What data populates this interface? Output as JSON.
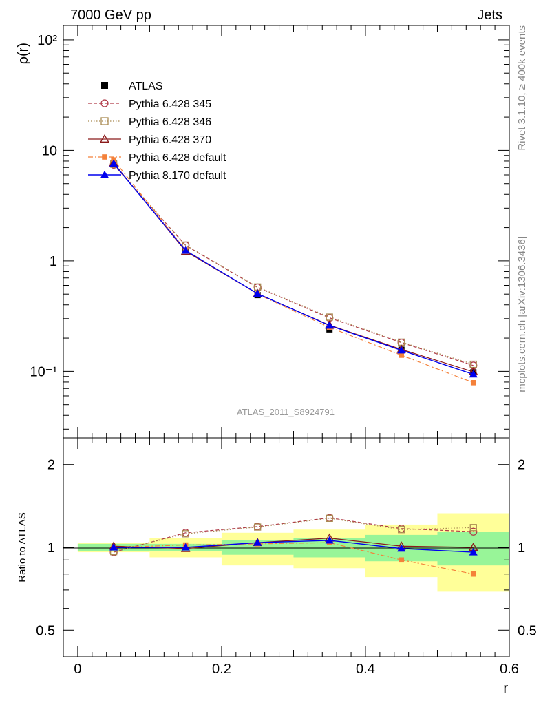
{
  "header": {
    "left": "7000 GeV pp",
    "right": "Jets"
  },
  "side_labels": {
    "rivet": "Rivet 3.1.10, ≥ 400k events",
    "mcplots": "mcplots.cern.ch [arXiv:1306.3436]"
  },
  "analysis_label": "ATLAS_2011_S8924791",
  "colors": {
    "atlas": "#000000",
    "py345": "#b03a48",
    "py346": "#a98a52",
    "py370": "#8b1a1a",
    "pydefault": "#f4813a",
    "py8": "#0000ee",
    "band_inner": "#98f598",
    "band_outer": "#ffff99"
  },
  "chart_data": [
    {
      "type": "line",
      "panel": "main",
      "ylabel": "ρ(r)",
      "yscale": "log",
      "ylim": [
        0.025,
        135
      ],
      "xlim": [
        -0.02,
        0.6
      ],
      "ytick_labels": [
        "10⁻¹",
        "1",
        "10",
        "10²"
      ],
      "x": [
        0.05,
        0.15,
        0.25,
        0.35,
        0.45,
        0.55
      ],
      "series": [
        {
          "name": "ATLAS",
          "key": "atlas",
          "values": [
            7.6,
            1.24,
            0.49,
            0.24,
            0.157,
            0.098
          ]
        },
        {
          "name": "Pythia 6.428 345",
          "key": "py345",
          "values": [
            7.4,
            1.38,
            0.575,
            0.305,
            0.182,
            0.113
          ]
        },
        {
          "name": "Pythia 6.428 346",
          "key": "py346",
          "values": [
            7.5,
            1.39,
            0.58,
            0.31,
            0.184,
            0.116
          ]
        },
        {
          "name": "Pythia 6.428 370",
          "key": "py370",
          "values": [
            7.7,
            1.22,
            0.505,
            0.262,
            0.158,
            0.099
          ]
        },
        {
          "name": "Pythia 6.428 default",
          "key": "pydefault",
          "values": [
            8.2,
            1.25,
            0.5,
            0.25,
            0.14,
            0.079
          ]
        },
        {
          "name": "Pythia 8.170 default",
          "key": "py8",
          "values": [
            7.6,
            1.24,
            0.505,
            0.26,
            0.155,
            0.094
          ]
        }
      ]
    },
    {
      "type": "line",
      "panel": "ratio",
      "ylabel": "Ratio to ATLAS",
      "xlabel": "r",
      "yscale": "log",
      "ylim": [
        0.4,
        2.5
      ],
      "xlim": [
        -0.02,
        0.6
      ],
      "ytick_labels": [
        "0.5",
        "1",
        "2"
      ],
      "xtick_labels": [
        "0",
        "0.2",
        "0.4",
        "0.6"
      ],
      "x": [
        0.05,
        0.15,
        0.25,
        0.35,
        0.45,
        0.55
      ],
      "bins": [
        [
          0.0,
          0.1
        ],
        [
          0.1,
          0.2
        ],
        [
          0.2,
          0.3
        ],
        [
          0.3,
          0.4
        ],
        [
          0.4,
          0.5
        ],
        [
          0.5,
          0.6
        ]
      ],
      "band_inner": [
        [
          0.97,
          1.03
        ],
        [
          0.97,
          1.03
        ],
        [
          0.94,
          1.06
        ],
        [
          0.92,
          1.08
        ],
        [
          0.89,
          1.11
        ],
        [
          0.86,
          1.14
        ]
      ],
      "band_outer": [
        [
          0.96,
          1.04
        ],
        [
          0.92,
          1.08
        ],
        [
          0.86,
          1.13
        ],
        [
          0.84,
          1.16
        ],
        [
          0.78,
          1.21
        ],
        [
          0.69,
          1.33
        ]
      ],
      "series": [
        {
          "name": "Pythia 6.428 345",
          "key": "py345",
          "values": [
            0.96,
            1.13,
            1.19,
            1.28,
            1.17,
            1.14
          ]
        },
        {
          "name": "Pythia 6.428 346",
          "key": "py346",
          "values": [
            0.965,
            1.12,
            1.185,
            1.275,
            1.16,
            1.18
          ]
        },
        {
          "name": "Pythia 6.428 370",
          "key": "py370",
          "values": [
            1.01,
            0.99,
            1.04,
            1.08,
            1.01,
            1.0
          ]
        },
        {
          "name": "Pythia 6.428 default",
          "key": "pydefault",
          "values": [
            1.0,
            1.02,
            1.03,
            1.04,
            0.9,
            0.8
          ]
        },
        {
          "name": "Pythia 8.170 default",
          "key": "py8",
          "values": [
            1.0,
            1.0,
            1.04,
            1.06,
            0.99,
            0.96
          ]
        }
      ]
    }
  ]
}
